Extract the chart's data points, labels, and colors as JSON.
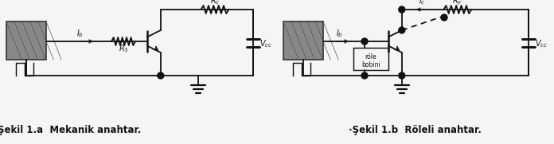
{
  "fig_width": 6.96,
  "fig_height": 1.81,
  "dpi": 100,
  "bg_color": "#f5f5f5",
  "line_color": "#111111",
  "caption_left": "Şekil 1.a  Mekanik anahtar.",
  "caption_right": "·Şekil 1.b  Röleli anahtar.",
  "caption_fontsize": 8.5
}
